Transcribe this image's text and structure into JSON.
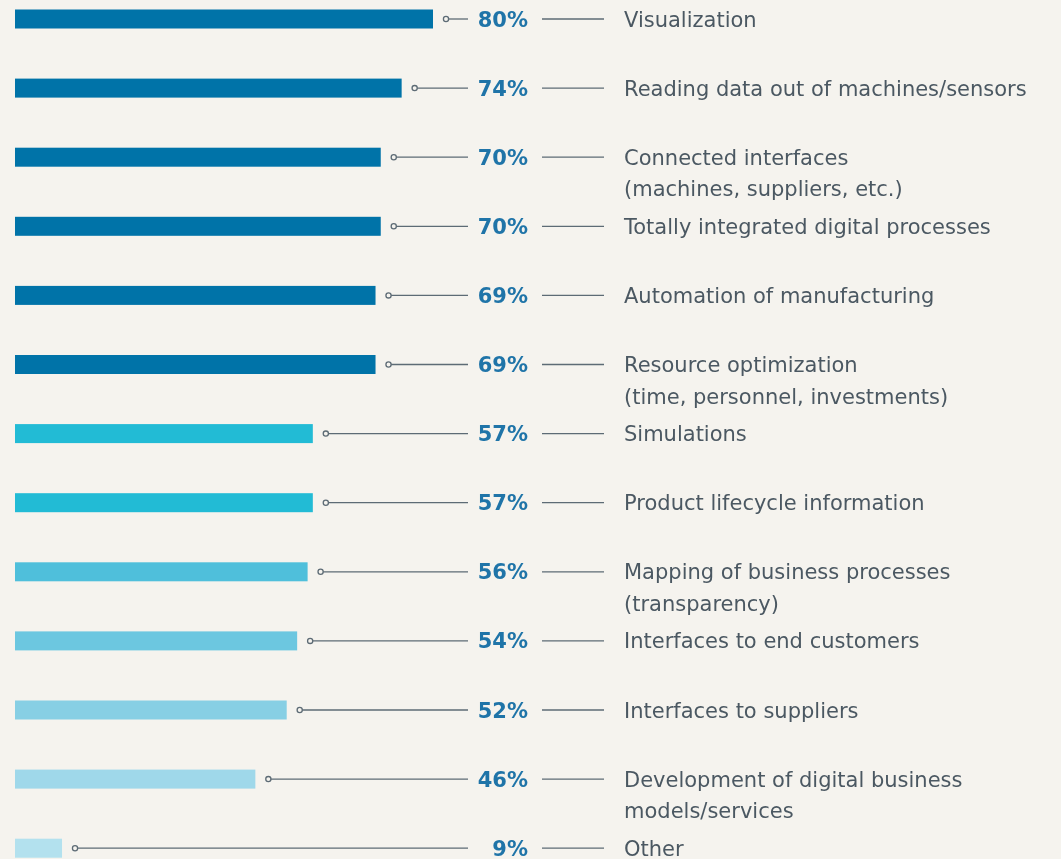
{
  "chart_data": {
    "type": "bar",
    "orientation": "horizontal",
    "categories": [
      "Visualization",
      "Reading data out of machines/sensors",
      "Connected interfaces (machines, suppliers, etc.)",
      "Totally integrated digital processes",
      "Automation of manufacturing",
      "Resource optimization (time, personnel, investments)",
      "Simulations",
      "Product lifecycle information",
      "Mapping of business processes (transparency)",
      "Interfaces to end customers",
      "Interfaces to suppliers",
      "Development of digital business models/services",
      "Other"
    ],
    "values": [
      80,
      74,
      70,
      70,
      69,
      69,
      57,
      57,
      56,
      54,
      52,
      46,
      9
    ],
    "value_labels": [
      "80%",
      "74%",
      "70%",
      "70%",
      "69%",
      "69%",
      "57%",
      "57%",
      "56%",
      "54%",
      "52%",
      "46%",
      "9%"
    ],
    "colors": [
      "#0073a8",
      "#0073a8",
      "#0073a8",
      "#0073a8",
      "#0073a8",
      "#0073a8",
      "#22bbd5",
      "#22bbd5",
      "#4fbfdb",
      "#6cc7e0",
      "#87cfe4",
      "#9fd8ea",
      "#b3e1ee"
    ]
  }
}
